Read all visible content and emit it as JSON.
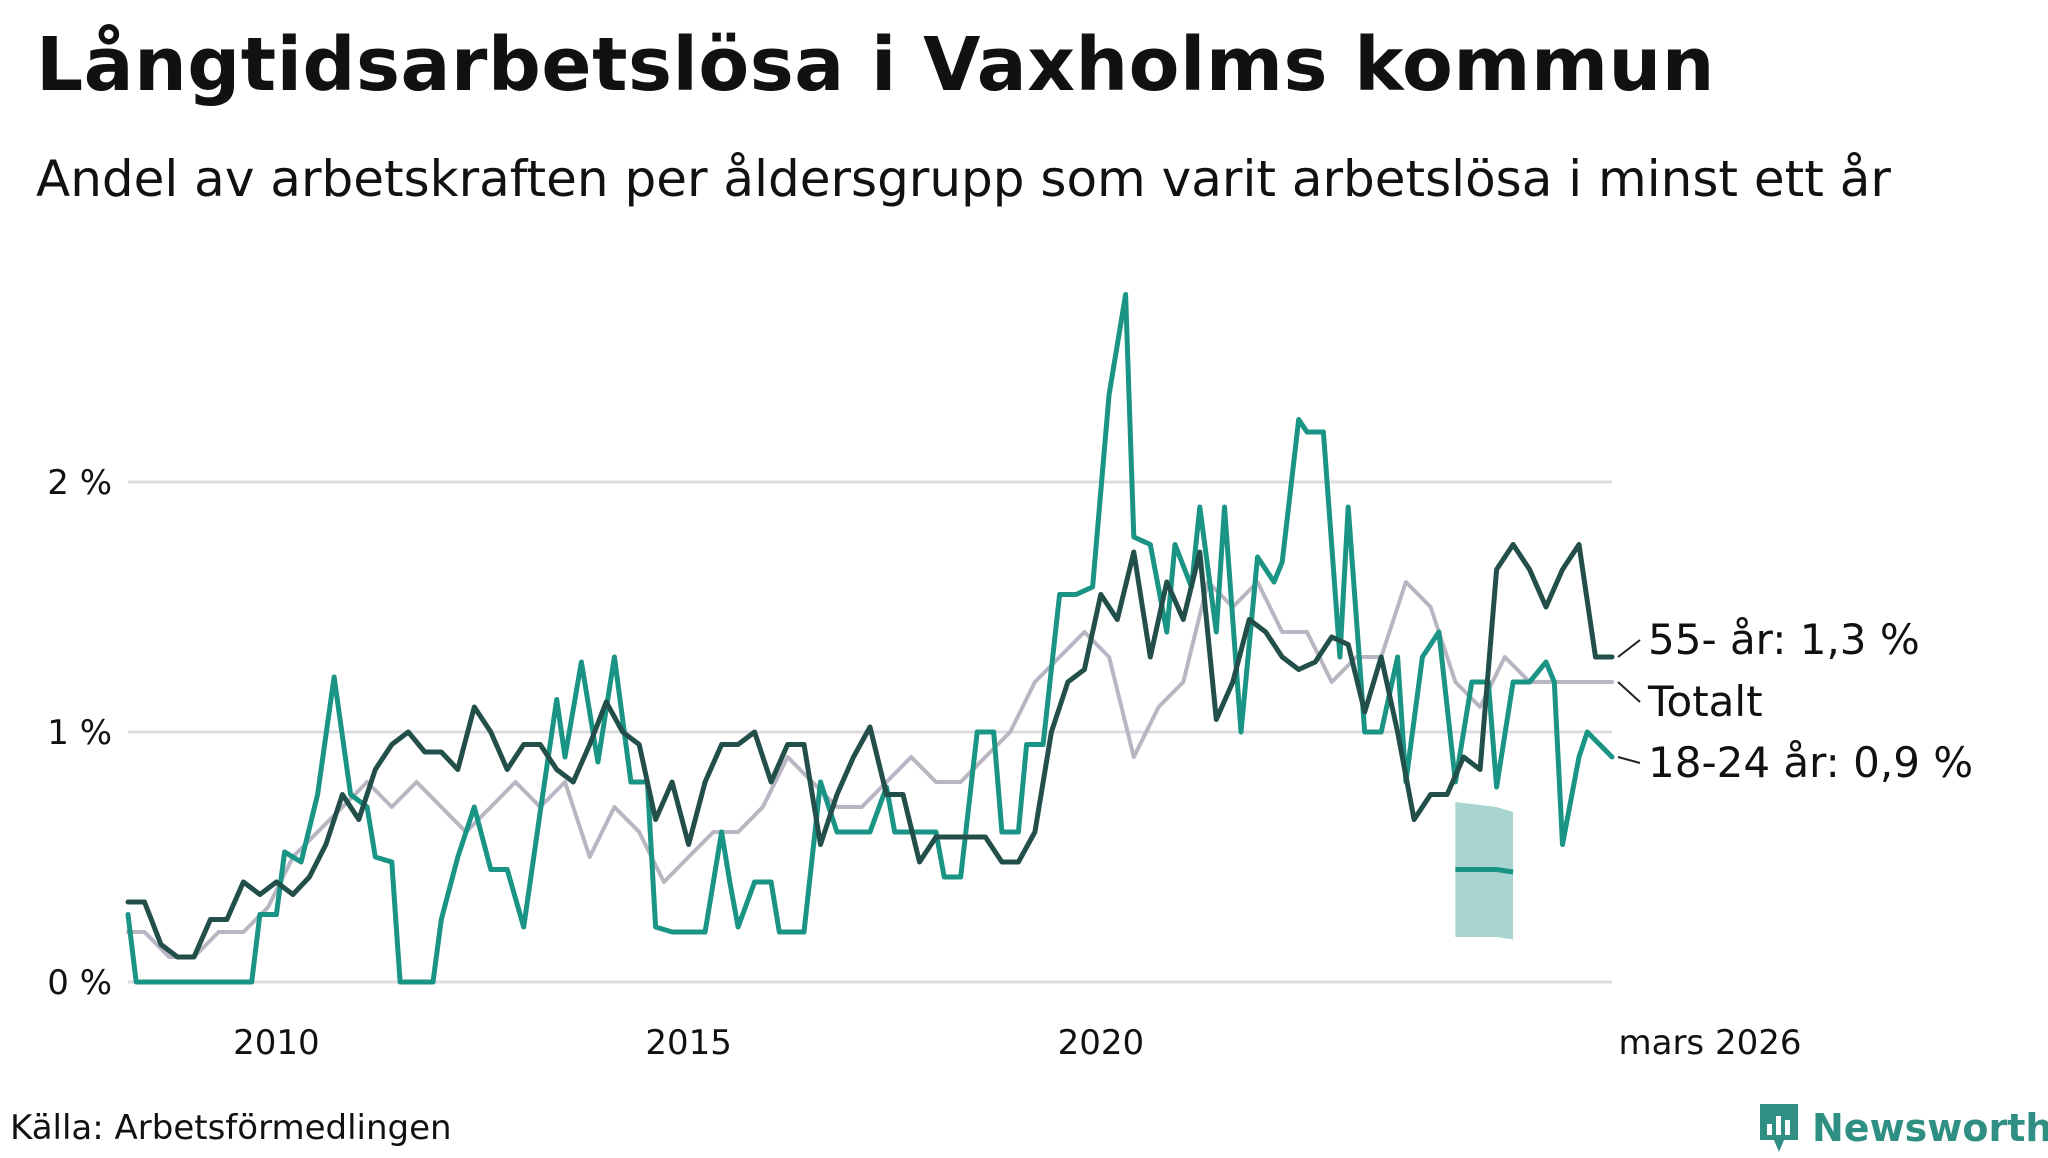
{
  "title": "Långtidsarbetslösa i Vaxholms kommun",
  "subtitle": "Andel av arbetskraften per åldersgrupp som varit arbetslösa i minst ett år",
  "source": "Källa: Arbetsförmedlingen",
  "brand": "Newsworthy",
  "colors": {
    "age55": "#234f4a",
    "total": "#b9b6c3",
    "age18_24": "#1a9484",
    "band": "#a3d3cc",
    "grid": "#dcdce2"
  },
  "chart_data": {
    "type": "line",
    "title": "Långtidsarbetslösa i Vaxholms kommun",
    "ylabel": "",
    "xlabel": "",
    "ylim": [
      0,
      2.85
    ],
    "xlim": [
      2008.2,
      2026.2
    ],
    "yticks": [
      {
        "value": 0,
        "label": "0 %"
      },
      {
        "value": 1,
        "label": "1 %"
      },
      {
        "value": 2,
        "label": "2 %"
      }
    ],
    "xticks": [
      {
        "value": 2010,
        "label": "2010"
      },
      {
        "value": 2015,
        "label": "2015"
      },
      {
        "value": 2020,
        "label": "2020"
      },
      {
        "value": 2026.2,
        "label": "mars 2026"
      }
    ],
    "series": [
      {
        "name": "Totalt",
        "key": "total",
        "end_label": "Totalt",
        "points": [
          [
            2008.2,
            0.2
          ],
          [
            2008.4,
            0.2
          ],
          [
            2008.7,
            0.1
          ],
          [
            2009.0,
            0.1
          ],
          [
            2009.3,
            0.2
          ],
          [
            2009.6,
            0.2
          ],
          [
            2009.9,
            0.3
          ],
          [
            2010.2,
            0.5
          ],
          [
            2010.5,
            0.6
          ],
          [
            2010.8,
            0.7
          ],
          [
            2011.1,
            0.8
          ],
          [
            2011.4,
            0.7
          ],
          [
            2011.7,
            0.8
          ],
          [
            2012.0,
            0.7
          ],
          [
            2012.3,
            0.6
          ],
          [
            2012.6,
            0.7
          ],
          [
            2012.9,
            0.8
          ],
          [
            2013.2,
            0.7
          ],
          [
            2013.5,
            0.8
          ],
          [
            2013.8,
            0.5
          ],
          [
            2014.1,
            0.7
          ],
          [
            2014.4,
            0.6
          ],
          [
            2014.7,
            0.4
          ],
          [
            2015.0,
            0.5
          ],
          [
            2015.3,
            0.6
          ],
          [
            2015.6,
            0.6
          ],
          [
            2015.9,
            0.7
          ],
          [
            2016.2,
            0.9
          ],
          [
            2016.5,
            0.8
          ],
          [
            2016.8,
            0.7
          ],
          [
            2017.1,
            0.7
          ],
          [
            2017.4,
            0.8
          ],
          [
            2017.7,
            0.9
          ],
          [
            2018.0,
            0.8
          ],
          [
            2018.3,
            0.8
          ],
          [
            2018.6,
            0.9
          ],
          [
            2018.9,
            1.0
          ],
          [
            2019.2,
            1.2
          ],
          [
            2019.5,
            1.3
          ],
          [
            2019.8,
            1.4
          ],
          [
            2020.1,
            1.3
          ],
          [
            2020.4,
            0.9
          ],
          [
            2020.7,
            1.1
          ],
          [
            2021.0,
            1.2
          ],
          [
            2021.3,
            1.6
          ],
          [
            2021.6,
            1.5
          ],
          [
            2021.9,
            1.6
          ],
          [
            2022.2,
            1.4
          ],
          [
            2022.5,
            1.4
          ],
          [
            2022.8,
            1.2
          ],
          [
            2023.1,
            1.3
          ],
          [
            2023.4,
            1.3
          ],
          [
            2023.7,
            1.6
          ],
          [
            2024.0,
            1.5
          ],
          [
            2024.3,
            1.2
          ],
          [
            2024.6,
            1.1
          ],
          [
            2024.9,
            1.3
          ],
          [
            2025.2,
            1.2
          ],
          [
            2025.5,
            1.2
          ],
          [
            2025.8,
            1.2
          ],
          [
            2026.0,
            1.2
          ],
          [
            2026.2,
            1.2
          ]
        ]
      },
      {
        "name": "18-24 år",
        "key": "age18_24",
        "end_label": "18-24 år: 0,9 %",
        "points": [
          [
            2008.2,
            0.27
          ],
          [
            2008.3,
            0.0
          ],
          [
            2009.0,
            0.0
          ],
          [
            2009.5,
            0.0
          ],
          [
            2009.7,
            0.0
          ],
          [
            2009.8,
            0.27
          ],
          [
            2010.0,
            0.27
          ],
          [
            2010.1,
            0.52
          ],
          [
            2010.3,
            0.48
          ],
          [
            2010.5,
            0.75
          ],
          [
            2010.7,
            1.22
          ],
          [
            2010.9,
            0.75
          ],
          [
            2011.1,
            0.7
          ],
          [
            2011.2,
            0.5
          ],
          [
            2011.4,
            0.48
          ],
          [
            2011.5,
            0.0
          ],
          [
            2011.9,
            0.0
          ],
          [
            2012.0,
            0.25
          ],
          [
            2012.2,
            0.5
          ],
          [
            2012.4,
            0.7
          ],
          [
            2012.6,
            0.45
          ],
          [
            2012.8,
            0.45
          ],
          [
            2013.0,
            0.22
          ],
          [
            2013.2,
            0.68
          ],
          [
            2013.4,
            1.13
          ],
          [
            2013.5,
            0.9
          ],
          [
            2013.7,
            1.28
          ],
          [
            2013.9,
            0.88
          ],
          [
            2014.1,
            1.3
          ],
          [
            2014.3,
            0.8
          ],
          [
            2014.5,
            0.8
          ],
          [
            2014.6,
            0.22
          ],
          [
            2014.8,
            0.2
          ],
          [
            2015.0,
            0.2
          ],
          [
            2015.2,
            0.2
          ],
          [
            2015.4,
            0.6
          ],
          [
            2015.5,
            0.4
          ],
          [
            2015.6,
            0.22
          ],
          [
            2015.8,
            0.4
          ],
          [
            2016.0,
            0.4
          ],
          [
            2016.1,
            0.2
          ],
          [
            2016.4,
            0.2
          ],
          [
            2016.6,
            0.8
          ],
          [
            2016.8,
            0.6
          ],
          [
            2017.0,
            0.6
          ],
          [
            2017.2,
            0.6
          ],
          [
            2017.4,
            0.78
          ],
          [
            2017.5,
            0.6
          ],
          [
            2017.8,
            0.6
          ],
          [
            2018.0,
            0.6
          ],
          [
            2018.1,
            0.42
          ],
          [
            2018.3,
            0.42
          ],
          [
            2018.5,
            1.0
          ],
          [
            2018.7,
            1.0
          ],
          [
            2018.8,
            0.6
          ],
          [
            2019.0,
            0.6
          ],
          [
            2019.1,
            0.95
          ],
          [
            2019.3,
            0.95
          ],
          [
            2019.5,
            1.55
          ],
          [
            2019.7,
            1.55
          ],
          [
            2019.9,
            1.58
          ],
          [
            2020.1,
            2.35
          ],
          [
            2020.3,
            2.75
          ],
          [
            2020.4,
            1.78
          ],
          [
            2020.6,
            1.75
          ],
          [
            2020.8,
            1.4
          ],
          [
            2020.9,
            1.75
          ],
          [
            2021.1,
            1.58
          ],
          [
            2021.2,
            1.9
          ],
          [
            2021.4,
            1.4
          ],
          [
            2021.5,
            1.9
          ],
          [
            2021.7,
            1.0
          ],
          [
            2021.9,
            1.7
          ],
          [
            2022.1,
            1.6
          ],
          [
            2022.2,
            1.68
          ],
          [
            2022.4,
            2.25
          ],
          [
            2022.5,
            2.2
          ],
          [
            2022.7,
            2.2
          ],
          [
            2022.9,
            1.3
          ],
          [
            2023.0,
            1.9
          ],
          [
            2023.2,
            1.0
          ],
          [
            2023.4,
            1.0
          ],
          [
            2023.6,
            1.3
          ],
          [
            2023.7,
            0.8
          ],
          [
            2023.9,
            1.3
          ],
          [
            2024.1,
            1.4
          ],
          [
            2024.3,
            0.8
          ],
          [
            2024.5,
            1.2
          ],
          [
            2024.7,
            1.2
          ],
          [
            2024.8,
            0.78
          ],
          [
            2025.0,
            1.2
          ],
          [
            2025.2,
            1.2
          ],
          [
            2025.4,
            1.28
          ],
          [
            2025.5,
            1.2
          ],
          [
            2025.6,
            0.55
          ],
          [
            2025.8,
            0.9
          ],
          [
            2025.9,
            1.0
          ],
          [
            2026.2,
            0.9
          ]
        ]
      },
      {
        "name": "55- år",
        "key": "age55",
        "end_label": "55- år: 1,3 %",
        "points": [
          [
            2008.2,
            0.32
          ],
          [
            2008.4,
            0.32
          ],
          [
            2008.6,
            0.15
          ],
          [
            2008.8,
            0.1
          ],
          [
            2009.0,
            0.1
          ],
          [
            2009.2,
            0.25
          ],
          [
            2009.4,
            0.25
          ],
          [
            2009.6,
            0.4
          ],
          [
            2009.8,
            0.35
          ],
          [
            2010.0,
            0.4
          ],
          [
            2010.2,
            0.35
          ],
          [
            2010.4,
            0.42
          ],
          [
            2010.6,
            0.55
          ],
          [
            2010.8,
            0.75
          ],
          [
            2011.0,
            0.65
          ],
          [
            2011.2,
            0.85
          ],
          [
            2011.4,
            0.95
          ],
          [
            2011.6,
            1.0
          ],
          [
            2011.8,
            0.92
          ],
          [
            2012.0,
            0.92
          ],
          [
            2012.2,
            0.85
          ],
          [
            2012.4,
            1.1
          ],
          [
            2012.6,
            1.0
          ],
          [
            2012.8,
            0.85
          ],
          [
            2013.0,
            0.95
          ],
          [
            2013.2,
            0.95
          ],
          [
            2013.4,
            0.85
          ],
          [
            2013.6,
            0.8
          ],
          [
            2013.8,
            0.95
          ],
          [
            2014.0,
            1.12
          ],
          [
            2014.2,
            1.0
          ],
          [
            2014.4,
            0.95
          ],
          [
            2014.6,
            0.65
          ],
          [
            2014.8,
            0.8
          ],
          [
            2015.0,
            0.55
          ],
          [
            2015.2,
            0.8
          ],
          [
            2015.4,
            0.95
          ],
          [
            2015.6,
            0.95
          ],
          [
            2015.8,
            1.0
          ],
          [
            2016.0,
            0.8
          ],
          [
            2016.2,
            0.95
          ],
          [
            2016.4,
            0.95
          ],
          [
            2016.6,
            0.55
          ],
          [
            2016.8,
            0.75
          ],
          [
            2017.0,
            0.9
          ],
          [
            2017.2,
            1.02
          ],
          [
            2017.4,
            0.75
          ],
          [
            2017.6,
            0.75
          ],
          [
            2017.8,
            0.48
          ],
          [
            2018.0,
            0.58
          ],
          [
            2018.2,
            0.58
          ],
          [
            2018.4,
            0.58
          ],
          [
            2018.6,
            0.58
          ],
          [
            2018.8,
            0.48
          ],
          [
            2019.0,
            0.48
          ],
          [
            2019.2,
            0.6
          ],
          [
            2019.4,
            1.0
          ],
          [
            2019.6,
            1.2
          ],
          [
            2019.8,
            1.25
          ],
          [
            2020.0,
            1.55
          ],
          [
            2020.2,
            1.45
          ],
          [
            2020.4,
            1.72
          ],
          [
            2020.6,
            1.3
          ],
          [
            2020.8,
            1.6
          ],
          [
            2021.0,
            1.45
          ],
          [
            2021.2,
            1.72
          ],
          [
            2021.4,
            1.05
          ],
          [
            2021.6,
            1.2
          ],
          [
            2021.8,
            1.45
          ],
          [
            2022.0,
            1.4
          ],
          [
            2022.2,
            1.3
          ],
          [
            2022.4,
            1.25
          ],
          [
            2022.6,
            1.28
          ],
          [
            2022.8,
            1.38
          ],
          [
            2023.0,
            1.35
          ],
          [
            2023.2,
            1.08
          ],
          [
            2023.4,
            1.3
          ],
          [
            2023.6,
            1.0
          ],
          [
            2023.8,
            0.65
          ],
          [
            2024.0,
            0.75
          ],
          [
            2024.2,
            0.75
          ],
          [
            2024.4,
            0.9
          ],
          [
            2024.6,
            0.85
          ],
          [
            2024.8,
            1.65
          ],
          [
            2025.0,
            1.75
          ],
          [
            2025.2,
            1.65
          ],
          [
            2025.4,
            1.5
          ],
          [
            2025.6,
            1.65
          ],
          [
            2025.8,
            1.75
          ],
          [
            2026.0,
            1.3
          ],
          [
            2026.2,
            1.3
          ]
        ]
      }
    ],
    "uncertainty_band": {
      "series": "18-24 år",
      "points": [
        [
          2024.3,
          0.72,
          0.18
        ],
        [
          2024.8,
          0.7,
          0.18
        ],
        [
          2025.0,
          0.68,
          0.17
        ]
      ],
      "line": [
        [
          2024.3,
          0.45
        ],
        [
          2024.8,
          0.45
        ],
        [
          2025.0,
          0.44
        ]
      ]
    }
  }
}
